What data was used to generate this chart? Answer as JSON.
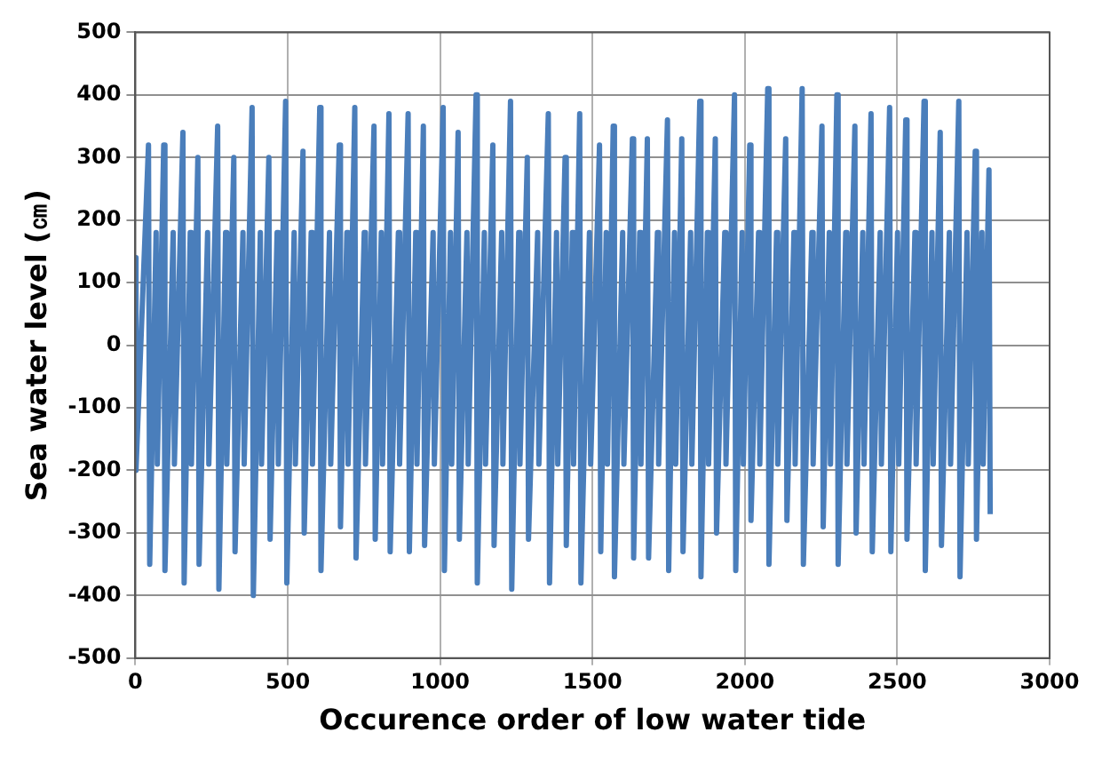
{
  "chart_data": {
    "type": "line",
    "xlabel": "Occurence order of low water tide",
    "ylabel": "Sea water level (㎝)",
    "xlim": [
      0,
      3000
    ],
    "xticks": [
      0,
      500,
      1000,
      1500,
      2000,
      2500,
      3000
    ],
    "ylim": [
      -500,
      500
    ],
    "yticks": [
      -500,
      -400,
      -300,
      -200,
      -100,
      0,
      100,
      200,
      300,
      400,
      500
    ],
    "grid": true,
    "legend": false,
    "marker": "none",
    "line_style": "solid",
    "series": [
      {
        "color": "#4a7ebb",
        "x": [
          0,
          2,
          43,
          47,
          68,
          72,
          93,
          97,
          124,
          128,
          156,
          160,
          180,
          184,
          205,
          209,
          237,
          241,
          270,
          274,
          296,
          300,
          323,
          327,
          353,
          357,
          383,
          387,
          410,
          414,
          438,
          442,
          465,
          469,
          493,
          497,
          521,
          525,
          550,
          554,
          577,
          581,
          605,
          609,
          637,
          641,
          669,
          673,
          694,
          698,
          720,
          724,
          751,
          755,
          783,
          787,
          807,
          811,
          832,
          836,
          863,
          867,
          895,
          899,
          920,
          924,
          945,
          949,
          977,
          981,
          1010,
          1014,
          1034,
          1038,
          1059,
          1063,
          1088,
          1092,
          1118,
          1122,
          1145,
          1149,
          1173,
          1177,
          1202,
          1206,
          1231,
          1235,
          1258,
          1262,
          1286,
          1290,
          1320,
          1324,
          1355,
          1359,
          1382,
          1386,
          1410,
          1414,
          1434,
          1438,
          1458,
          1462,
          1490,
          1494,
          1523,
          1527,
          1545,
          1549,
          1568,
          1572,
          1599,
          1603,
          1631,
          1635,
          1655,
          1659,
          1680,
          1684,
          1713,
          1717,
          1746,
          1750,
          1769,
          1773,
          1793,
          1797,
          1822,
          1826,
          1852,
          1856,
          1877,
          1881,
          1903,
          1907,
          1934,
          1938,
          1966,
          1970,
          1991,
          1995,
          2016,
          2020,
          2045,
          2049,
          2075,
          2079,
          2104,
          2108,
          2134,
          2138,
          2161,
          2165,
          2188,
          2192,
          2220,
          2224,
          2253,
          2257,
          2277,
          2281,
          2302,
          2306,
          2331,
          2335,
          2361,
          2365,
          2387,
          2391,
          2414,
          2418,
          2444,
          2448,
          2475,
          2479,
          2501,
          2505,
          2528,
          2532,
          2558,
          2562,
          2588,
          2592,
          2614,
          2618,
          2641,
          2645,
          2671,
          2675,
          2702,
          2706,
          2729,
          2733,
          2756,
          2760,
          2778,
          2782,
          2801,
          2805
        ],
        "values": [
          140,
          -200,
          320,
          -350,
          180,
          -190,
          320,
          -360,
          180,
          -190,
          340,
          -380,
          180,
          -190,
          300,
          -350,
          180,
          -190,
          350,
          -390,
          180,
          -190,
          300,
          -330,
          180,
          -190,
          380,
          -400,
          180,
          -190,
          300,
          -310,
          180,
          -190,
          390,
          -380,
          180,
          -190,
          310,
          -300,
          180,
          -190,
          380,
          -360,
          180,
          -190,
          320,
          -290,
          180,
          -190,
          380,
          -340,
          180,
          -190,
          350,
          -310,
          180,
          -190,
          370,
          -330,
          180,
          -190,
          370,
          -330,
          180,
          -190,
          350,
          -320,
          180,
          -190,
          380,
          -360,
          180,
          -190,
          340,
          -310,
          180,
          -190,
          400,
          -380,
          180,
          -190,
          320,
          -320,
          180,
          -190,
          390,
          -390,
          180,
          -190,
          300,
          -310,
          180,
          -190,
          370,
          -380,
          180,
          -190,
          300,
          -320,
          180,
          -190,
          370,
          -380,
          180,
          -190,
          320,
          -330,
          180,
          -190,
          350,
          -370,
          180,
          -190,
          330,
          -340,
          180,
          -190,
          330,
          -340,
          180,
          -190,
          360,
          -360,
          180,
          -190,
          330,
          -330,
          180,
          -190,
          390,
          -370,
          180,
          -190,
          330,
          -300,
          180,
          -190,
          400,
          -360,
          180,
          -190,
          320,
          -280,
          180,
          -190,
          410,
          -350,
          180,
          -190,
          330,
          -280,
          180,
          -190,
          410,
          -350,
          180,
          -190,
          350,
          -290,
          180,
          -190,
          400,
          -350,
          180,
          -190,
          350,
          -300,
          180,
          -190,
          370,
          -330,
          180,
          -190,
          380,
          -330,
          180,
          -190,
          360,
          -310,
          180,
          -190,
          390,
          -360,
          180,
          -190,
          340,
          -320,
          180,
          -190,
          390,
          -370,
          180,
          -190,
          310,
          -310,
          180,
          -190,
          280,
          -270
        ]
      }
    ]
  }
}
